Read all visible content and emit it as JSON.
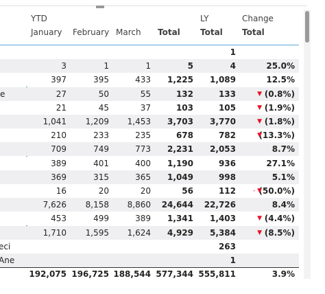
{
  "header": {
    "group_ytd": "YTD",
    "group_ly": "LY",
    "group_change": "Change",
    "columns": [
      "January",
      "February",
      "March",
      "Total",
      "Total",
      "Total"
    ]
  },
  "table": {
    "rows": [
      {
        "label": "",
        "cells": [
          "",
          "",
          "",
          "",
          "1",
          ""
        ]
      },
      {
        "label": "",
        "cells": [
          "3",
          "1",
          "1",
          "5",
          "4",
          "25.0%"
        ]
      },
      {
        "label": "",
        "cells": [
          "397",
          "395",
          "433",
          "1,225",
          "1,089",
          "12.5%"
        ]
      },
      {
        "label": "e",
        "cells": [
          "27",
          "50",
          "55",
          "132",
          "133",
          "(0.8%)"
        ],
        "indicator": "▼"
      },
      {
        "label": "",
        "cells": [
          "21",
          "45",
          "37",
          "103",
          "105",
          "(1.9%)"
        ],
        "indicator": "▼"
      },
      {
        "label": "",
        "cells": [
          "1,041",
          "1,209",
          "1,453",
          "3,703",
          "3,770",
          "(1.8%)"
        ],
        "indicator": "▼"
      },
      {
        "label": "",
        "cells": [
          "210",
          "233",
          "235",
          "678",
          "782",
          "(13.3%)"
        ],
        "indicator": "▼"
      },
      {
        "label": "",
        "cells": [
          "709",
          "749",
          "773",
          "2,231",
          "2,053",
          "8.7%"
        ]
      },
      {
        "label": "",
        "cells": [
          "389",
          "401",
          "400",
          "1,190",
          "936",
          "27.1%"
        ]
      },
      {
        "label": "",
        "cells": [
          "369",
          "315",
          "365",
          "1,049",
          "998",
          "5.1%"
        ]
      },
      {
        "label": "",
        "cells": [
          "16",
          "20",
          "20",
          "56",
          "112",
          "(50.0%)"
        ],
        "indicator": "- ▼"
      },
      {
        "label": "",
        "cells": [
          "7,626",
          "8,158",
          "8,860",
          "24,644",
          "22,726",
          "8.4%"
        ]
      },
      {
        "label": "",
        "cells": [
          "453",
          "499",
          "389",
          "1,341",
          "1,403",
          "(4.4%)"
        ],
        "indicator": "▼"
      },
      {
        "label": "",
        "cells": [
          "1,710",
          "1,595",
          "1,624",
          "4,929",
          "5,384",
          "(8.5%)"
        ],
        "indicator": "▼"
      },
      {
        "label": "eci",
        "cells": [
          "",
          "",
          "",
          "",
          "263",
          ""
        ]
      },
      {
        "label": "Ane",
        "cells": [
          "",
          "",
          "",
          "",
          "1",
          ""
        ]
      }
    ],
    "total": {
      "cells": [
        "192,075",
        "196,725",
        "188,544",
        "577,344",
        "555,811",
        "3.9%"
      ]
    }
  }
}
